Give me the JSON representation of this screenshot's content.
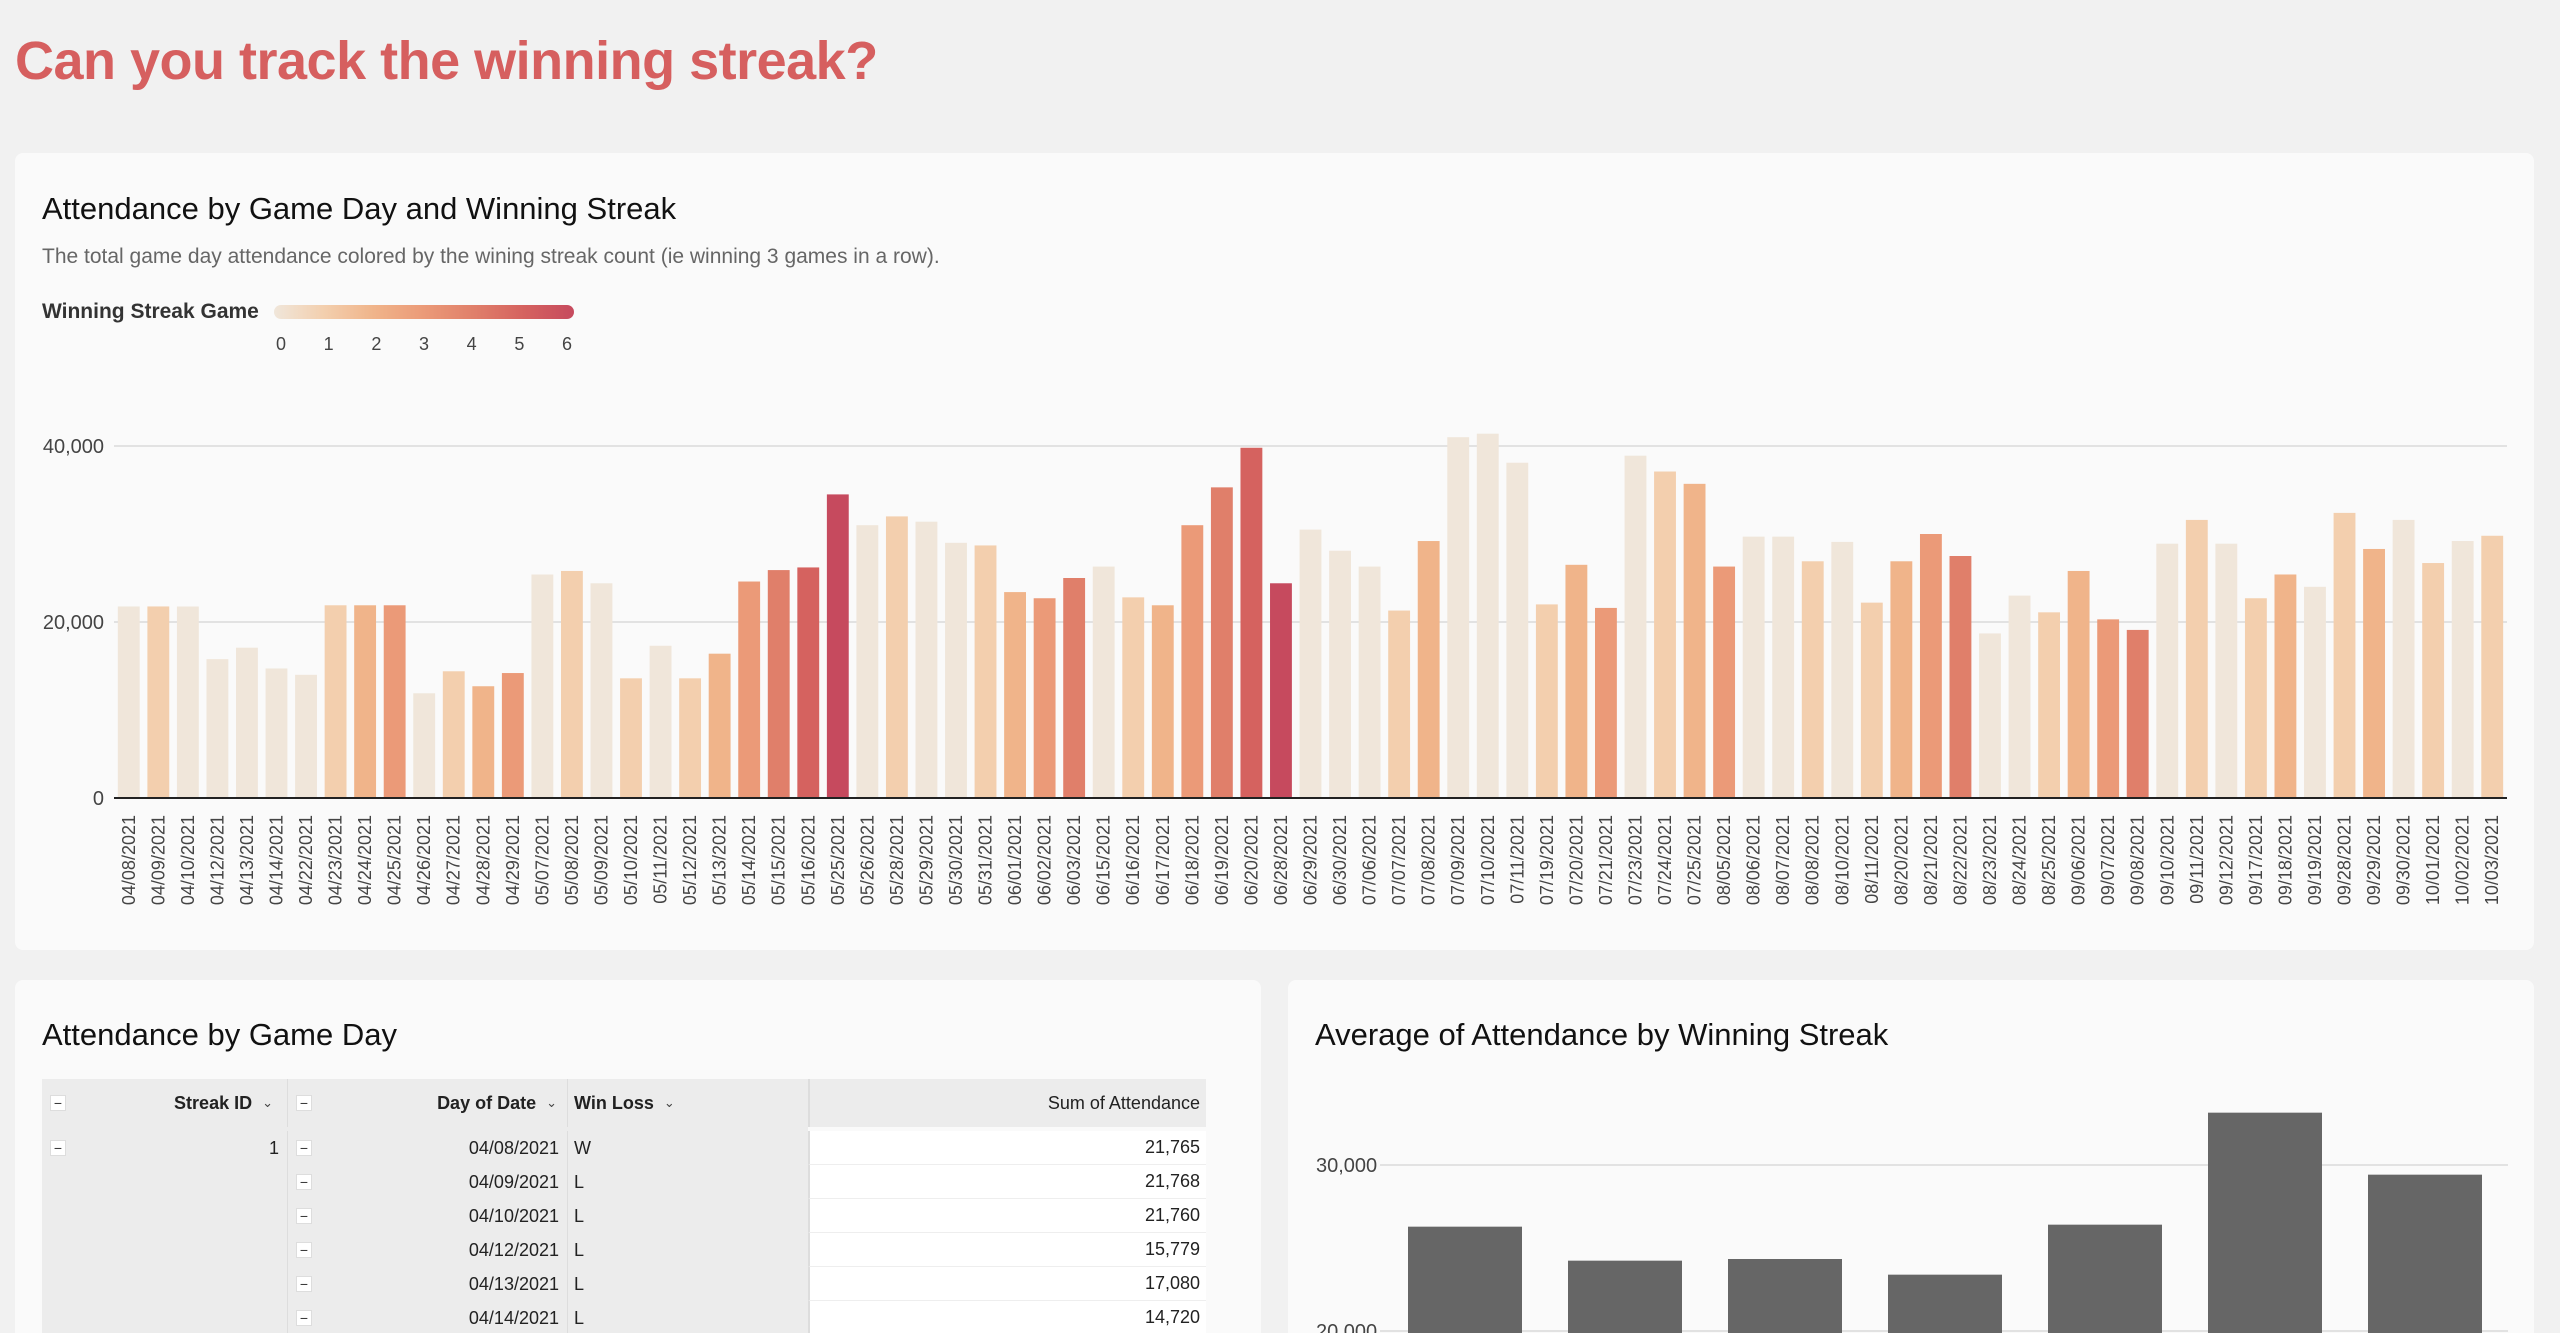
{
  "page": {
    "title": "Can you track the winning streak?"
  },
  "main_chart": {
    "title": "Attendance by Game Day and Winning Streak",
    "subtitle": "The total game day attendance colored by the wining streak count (ie winning 3 games in a row).",
    "legend": {
      "label": "Winning Streak Game",
      "ticks": [
        "0",
        "1",
        "2",
        "3",
        "4",
        "5",
        "6"
      ]
    },
    "y_tick_labels": [
      "0",
      "20,000",
      "40,000"
    ]
  },
  "streak_colors": [
    "#f0e6da",
    "#f3cfae",
    "#f0b48a",
    "#eb9a78",
    "#e07f6a",
    "#d5625f",
    "#c64a5e"
  ],
  "chart_data": [
    {
      "type": "bar",
      "title": "Attendance by Game Day and Winning Streak",
      "xlabel": "",
      "ylabel": "",
      "ylim": [
        0,
        42000
      ],
      "y_ticks": [
        0,
        20000,
        40000
      ],
      "grid": true,
      "legend": "top-left",
      "color_by": "Winning Streak Game",
      "categories": [
        "04/08/2021",
        "04/09/2021",
        "04/10/2021",
        "04/12/2021",
        "04/13/2021",
        "04/14/2021",
        "04/22/2021",
        "04/23/2021",
        "04/24/2021",
        "04/25/2021",
        "04/26/2021",
        "04/27/2021",
        "04/28/2021",
        "04/29/2021",
        "05/07/2021",
        "05/08/2021",
        "05/09/2021",
        "05/10/2021",
        "05/11/2021",
        "05/12/2021",
        "05/13/2021",
        "05/14/2021",
        "05/15/2021",
        "05/16/2021",
        "05/25/2021",
        "05/26/2021",
        "05/28/2021",
        "05/29/2021",
        "05/30/2021",
        "05/31/2021",
        "06/01/2021",
        "06/02/2021",
        "06/03/2021",
        "06/15/2021",
        "06/16/2021",
        "06/17/2021",
        "06/18/2021",
        "06/19/2021",
        "06/20/2021",
        "06/28/2021",
        "06/29/2021",
        "06/30/2021",
        "07/06/2021",
        "07/07/2021",
        "07/08/2021",
        "07/09/2021",
        "07/10/2021",
        "07/11/2021",
        "07/19/2021",
        "07/20/2021",
        "07/21/2021",
        "07/23/2021",
        "07/24/2021",
        "07/25/2021",
        "08/05/2021",
        "08/06/2021",
        "08/07/2021",
        "08/08/2021",
        "08/10/2021",
        "08/11/2021",
        "08/20/2021",
        "08/21/2021",
        "08/22/2021",
        "08/23/2021",
        "08/24/2021",
        "08/25/2021",
        "09/06/2021",
        "09/07/2021",
        "09/08/2021",
        "09/10/2021",
        "09/11/2021",
        "09/12/2021",
        "09/17/2021",
        "09/18/2021",
        "09/19/2021",
        "09/28/2021",
        "09/29/2021",
        "09/30/2021",
        "10/01/2021",
        "10/02/2021",
        "10/03/2021"
      ],
      "values": [
        21765,
        21768,
        21760,
        15779,
        17080,
        14720,
        14000,
        21900,
        21900,
        21900,
        11900,
        14400,
        12700,
        14200,
        25400,
        25800,
        24400,
        13600,
        17300,
        13600,
        16400,
        24600,
        25900,
        26200,
        34500,
        31000,
        32000,
        31400,
        29000,
        28700,
        23400,
        22700,
        25000,
        26300,
        22800,
        21900,
        31000,
        35300,
        39800,
        24400,
        30500,
        28100,
        26300,
        21300,
        29200,
        41000,
        41400,
        38100,
        22000,
        26500,
        21600,
        38900,
        37100,
        35700,
        26300,
        29700,
        29700,
        26900,
        29100,
        22200,
        26900,
        30000,
        27500,
        18700,
        23000,
        21100,
        25800,
        20300,
        19100,
        28900,
        31600,
        28900,
        22700,
        25400,
        24000,
        32400,
        28300,
        31600,
        26700,
        29200,
        29800
      ],
      "streak": [
        0,
        1,
        0,
        0,
        0,
        0,
        0,
        1,
        2,
        3,
        0,
        1,
        2,
        3,
        0,
        1,
        0,
        1,
        0,
        1,
        2,
        3,
        4,
        5,
        6,
        0,
        1,
        0,
        0,
        1,
        2,
        3,
        4,
        0,
        1,
        2,
        3,
        4,
        5,
        6,
        0,
        0,
        0,
        1,
        2,
        0,
        0,
        0,
        1,
        2,
        3,
        0,
        1,
        2,
        3,
        0,
        0,
        1,
        0,
        1,
        2,
        3,
        4,
        0,
        0,
        1,
        2,
        3,
        4,
        0,
        1,
        0,
        1,
        2,
        0,
        1,
        2,
        0,
        1,
        0,
        1
      ]
    },
    {
      "type": "bar",
      "title": "Average of Attendance by Winning Streak",
      "y_ticks": [
        20000,
        30000
      ],
      "y_tick_labels": [
        "20,000",
        "30,000"
      ],
      "ylim": [
        20000,
        34000
      ],
      "grid": true,
      "color": "#666666",
      "values": [
        26285,
        24237,
        24337,
        23394,
        26406,
        33153,
        29418
      ]
    }
  ],
  "table": {
    "title": "Attendance by Game Day",
    "headers": {
      "streak_id": "Streak ID",
      "day": "Day of Date",
      "win_loss": "Win Loss",
      "sum": "Sum of Attendance"
    },
    "rows": [
      {
        "streak_id": "1",
        "day": "04/08/2021",
        "win_loss": "W",
        "sum": "21,765"
      },
      {
        "streak_id": "",
        "day": "04/09/2021",
        "win_loss": "L",
        "sum": "21,768"
      },
      {
        "streak_id": "",
        "day": "04/10/2021",
        "win_loss": "L",
        "sum": "21,760"
      },
      {
        "streak_id": "",
        "day": "04/12/2021",
        "win_loss": "L",
        "sum": "15,779"
      },
      {
        "streak_id": "",
        "day": "04/13/2021",
        "win_loss": "L",
        "sum": "17,080"
      },
      {
        "streak_id": "",
        "day": "04/14/2021",
        "win_loss": "L",
        "sum": "14,720"
      }
    ],
    "collapse_symbol": "−",
    "chevron": "⌄"
  },
  "avg_chart": {
    "title": "Average of Attendance by Winning Streak"
  }
}
